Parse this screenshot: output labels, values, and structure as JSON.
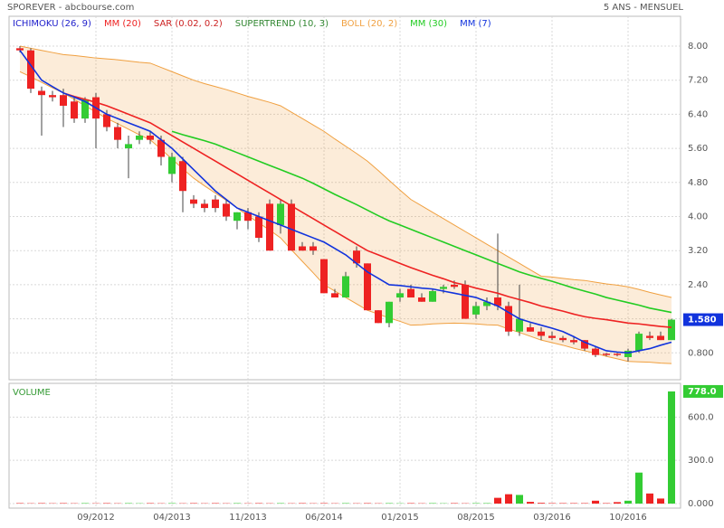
{
  "header": {
    "title": "SPOREVER - abcbourse.com",
    "period": "5 ANS - MENSUEL"
  },
  "chart_data": [
    {
      "type": "candlestick",
      "categories": [
        null,
        null,
        null,
        null,
        null,
        null,
        null,
        "09/2012",
        null,
        null,
        null,
        null,
        null,
        null,
        "04/2013",
        null,
        null,
        null,
        null,
        null,
        null,
        "11/2013",
        null,
        null,
        null,
        null,
        null,
        null,
        "06/2014",
        null,
        null,
        null,
        null,
        null,
        null,
        "01/2015",
        null,
        null,
        null,
        null,
        null,
        null,
        "08/2015",
        null,
        null,
        null,
        null,
        null,
        null,
        "03/2016",
        null,
        null,
        null,
        null,
        null,
        null,
        "10/2016",
        null,
        null,
        null,
        null
      ],
      "open": [
        7.95,
        7.9,
        6.95,
        6.85,
        6.85,
        6.7,
        6.3,
        6.8,
        6.4,
        6.1,
        5.6,
        5.8,
        5.9,
        5.8,
        5.0,
        5.3,
        4.4,
        4.3,
        4.4,
        4.3,
        3.9,
        4.1,
        4.0,
        4.3,
        3.8,
        4.3,
        3.3,
        3.3,
        3.0,
        2.2,
        2.1,
        3.2,
        2.9,
        1.8,
        1.5,
        2.1,
        2.3,
        2.1,
        2.0,
        2.3,
        2.4,
        2.4,
        1.7,
        1.9,
        2.1,
        1.9,
        1.3,
        1.4,
        1.3,
        1.2,
        1.15,
        1.1,
        1.1,
        0.9,
        0.78,
        0.78,
        0.7,
        0.85,
        1.2,
        1.2,
        1.1
      ],
      "high": [
        8.0,
        7.95,
        7.05,
        6.95,
        7.0,
        6.8,
        6.8,
        6.9,
        6.5,
        6.2,
        5.9,
        6.0,
        6.0,
        5.9,
        5.5,
        5.4,
        4.5,
        4.4,
        4.5,
        4.4,
        4.1,
        4.2,
        4.1,
        4.4,
        4.4,
        4.4,
        3.4,
        3.4,
        3.0,
        2.3,
        2.7,
        3.3,
        2.9,
        1.8,
        2.0,
        2.3,
        2.4,
        2.2,
        2.3,
        2.4,
        2.5,
        2.5,
        2.0,
        2.1,
        3.6,
        2.0,
        2.4,
        1.5,
        1.4,
        1.3,
        1.2,
        1.2,
        1.1,
        0.95,
        0.8,
        0.8,
        0.9,
        1.3,
        1.3,
        1.3,
        1.6
      ],
      "low": [
        7.85,
        6.9,
        5.9,
        6.7,
        6.1,
        6.2,
        6.2,
        5.6,
        6.0,
        5.6,
        4.9,
        5.7,
        5.7,
        5.2,
        4.8,
        4.1,
        4.2,
        4.1,
        4.1,
        3.9,
        3.7,
        3.7,
        3.4,
        3.2,
        3.6,
        3.2,
        3.2,
        3.1,
        2.2,
        2.1,
        2.1,
        2.8,
        1.8,
        1.5,
        1.4,
        2.0,
        2.1,
        2.0,
        2.0,
        2.2,
        2.3,
        1.6,
        1.6,
        1.8,
        1.8,
        1.2,
        1.2,
        1.3,
        1.1,
        1.1,
        1.05,
        1.0,
        0.85,
        0.7,
        0.72,
        0.72,
        0.6,
        0.8,
        1.1,
        1.1,
        1.1
      ],
      "close": [
        7.9,
        7.0,
        6.85,
        6.8,
        6.6,
        6.3,
        6.75,
        6.3,
        6.1,
        5.8,
        5.7,
        5.9,
        5.8,
        5.4,
        5.4,
        4.6,
        4.3,
        4.2,
        4.2,
        4.0,
        4.1,
        3.9,
        3.5,
        3.2,
        4.3,
        3.2,
        3.2,
        3.2,
        2.2,
        2.1,
        2.6,
        2.9,
        1.8,
        1.5,
        2.0,
        2.2,
        2.1,
        2.0,
        2.25,
        2.35,
        2.35,
        1.6,
        1.9,
        2.0,
        1.9,
        1.3,
        1.6,
        1.3,
        1.2,
        1.15,
        1.1,
        1.05,
        0.9,
        0.75,
        0.75,
        0.75,
        0.85,
        1.25,
        1.15,
        1.1,
        1.58
      ],
      "up_color": "#33cc33",
      "down_color": "#ee2222",
      "ylim": [
        0.17,
        8.7
      ],
      "yticks": [
        {
          "value": 0.8,
          "label": "0.800"
        },
        {
          "value": 1.6,
          "label": "1.60"
        },
        {
          "value": 2.4,
          "label": "2.40"
        },
        {
          "value": 3.2,
          "label": "3.20"
        },
        {
          "value": 4.0,
          "label": "4.00"
        },
        {
          "value": 4.8,
          "label": "4.80"
        },
        {
          "value": 5.6,
          "label": "5.60"
        },
        {
          "value": 6.4,
          "label": "6.40"
        },
        {
          "value": 7.2,
          "label": "7.20"
        },
        {
          "value": 8.0,
          "label": "8.00"
        }
      ],
      "last_price": {
        "value": 1.58,
        "label": "1.580"
      },
      "grid": true,
      "series": [
        {
          "name": "ICHIMOKU (26, 9)",
          "color": "#2222cc"
        },
        {
          "name": "MM (20)",
          "color": "#ee2222",
          "values": [
            null,
            null,
            null,
            null,
            6.9,
            6.82,
            6.75,
            6.68,
            6.6,
            6.5,
            6.4,
            6.3,
            6.2,
            6.05,
            5.9,
            5.75,
            5.6,
            5.45,
            5.3,
            5.15,
            5.0,
            4.85,
            4.7,
            4.55,
            4.4,
            4.25,
            4.1,
            3.95,
            3.8,
            3.65,
            3.5,
            3.35,
            3.2,
            3.1,
            3.0,
            2.9,
            2.8,
            2.71,
            2.62,
            2.54,
            2.45,
            2.39,
            2.32,
            2.26,
            2.2,
            2.12,
            2.05,
            1.98,
            1.9,
            1.84,
            1.78,
            1.71,
            1.65,
            1.61,
            1.58,
            1.54,
            1.5,
            1.48,
            1.45,
            1.42,
            1.4
          ]
        },
        {
          "name": "SAR (0.02, 0.2)",
          "color": "#cc2222"
        },
        {
          "name": "SUPERTREND (10, 3)",
          "color": "#338833"
        },
        {
          "name": "BOLL (20, 2)",
          "color": "#f0a040",
          "values": [
            8.0,
            7.95,
            7.9,
            7.85,
            7.8,
            7.78,
            7.75,
            7.72,
            7.7,
            7.68,
            7.65,
            7.62,
            7.6,
            7.5,
            7.4,
            7.3,
            7.2,
            7.12,
            7.05,
            6.98,
            6.9,
            6.82,
            6.75,
            6.68,
            6.6,
            6.45,
            6.3,
            6.15,
            6.0,
            5.82,
            5.65,
            5.48,
            5.3,
            5.08,
            4.85,
            4.62,
            4.4,
            4.25,
            4.1,
            3.95,
            3.8,
            3.65,
            3.5,
            3.35,
            3.2,
            3.05,
            2.9,
            2.75,
            2.6,
            2.58,
            2.55,
            2.52,
            2.5,
            2.46,
            2.42,
            2.39,
            2.35,
            2.29,
            2.22,
            2.16,
            2.1
          ],
          "lower": [
            7.4,
            7.28,
            7.15,
            7.02,
            6.9,
            6.75,
            6.6,
            6.45,
            6.3,
            6.18,
            6.05,
            5.92,
            5.8,
            5.58,
            5.35,
            5.12,
            4.9,
            4.72,
            4.55,
            4.38,
            4.2,
            4.02,
            3.85,
            3.68,
            3.5,
            3.22,
            2.95,
            2.68,
            2.4,
            2.25,
            2.1,
            1.95,
            1.8,
            1.71,
            1.62,
            1.54,
            1.45,
            1.46,
            1.48,
            1.49,
            1.5,
            1.49,
            1.48,
            1.46,
            1.45,
            1.36,
            1.28,
            1.19,
            1.1,
            1.04,
            0.98,
            0.91,
            0.85,
            0.79,
            0.72,
            0.66,
            0.6,
            0.59,
            0.58,
            0.56,
            0.55
          ]
        },
        {
          "name": "MM (30)",
          "color": "#22cc22",
          "values": [
            null,
            null,
            null,
            null,
            null,
            null,
            null,
            null,
            null,
            null,
            null,
            null,
            null,
            null,
            6.0,
            5.92,
            5.85,
            5.78,
            5.7,
            5.6,
            5.5,
            5.4,
            5.3,
            5.2,
            5.1,
            5.0,
            4.9,
            4.78,
            4.65,
            4.52,
            4.4,
            4.28,
            4.15,
            4.02,
            3.9,
            3.8,
            3.7,
            3.6,
            3.5,
            3.4,
            3.3,
            3.2,
            3.1,
            3.0,
            2.9,
            2.8,
            2.7,
            2.62,
            2.55,
            2.48,
            2.4,
            2.32,
            2.25,
            2.18,
            2.1,
            2.04,
            1.98,
            1.92,
            1.85,
            1.8,
            1.75
          ]
        },
        {
          "name": "MM (7)",
          "color": "#1133dd",
          "values": [
            7.9,
            7.55,
            7.2,
            7.05,
            6.9,
            6.8,
            6.7,
            6.55,
            6.4,
            6.3,
            6.2,
            6.1,
            6.0,
            5.8,
            5.6,
            5.35,
            5.1,
            4.85,
            4.6,
            4.4,
            4.2,
            4.1,
            4.0,
            3.9,
            3.8,
            3.7,
            3.6,
            3.5,
            3.4,
            3.25,
            3.1,
            2.9,
            2.7,
            2.55,
            2.4,
            2.38,
            2.35,
            2.32,
            2.3,
            2.25,
            2.2,
            2.15,
            2.1,
            2.0,
            1.9,
            1.75,
            1.6,
            1.52,
            1.45,
            1.38,
            1.3,
            1.18,
            1.05,
            0.95,
            0.85,
            0.82,
            0.8,
            0.85,
            0.9,
            0.98,
            1.05
          ]
        }
      ]
    },
    {
      "type": "bar",
      "title": "VOLUME",
      "values": [
        3,
        2,
        3,
        2,
        3,
        2,
        3,
        2,
        3,
        2,
        3,
        2,
        3,
        2,
        3,
        2,
        3,
        2,
        3,
        2,
        3,
        2,
        3,
        2,
        3,
        2,
        3,
        2,
        3,
        2,
        3,
        2,
        3,
        2,
        3,
        2,
        3,
        2,
        3,
        2,
        3,
        2,
        3,
        3,
        40,
        65,
        60,
        12,
        5,
        3,
        3,
        3,
        3,
        20,
        3,
        10,
        20,
        215,
        70,
        35,
        778
      ],
      "ylim": [
        0,
        834
      ],
      "yticks": [
        {
          "value": 0,
          "label": "0.000"
        },
        {
          "value": 300,
          "label": "300.0"
        },
        {
          "value": 600,
          "label": "600.0"
        }
      ],
      "last_volume": {
        "value": 778,
        "label": "778.0"
      },
      "grid": true
    }
  ]
}
